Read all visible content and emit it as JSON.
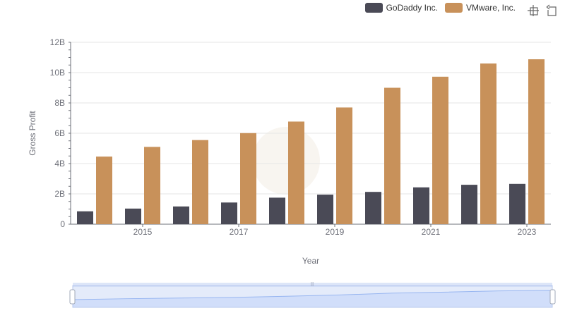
{
  "legend": {
    "godaddy": "GoDaddy Inc.",
    "vmware": "VMware, Inc."
  },
  "toolbox": {
    "zoom_icon": "zoom-select-icon",
    "reset_icon": "zoom-reset-icon"
  },
  "colors": {
    "godaddy": "#4a4a56",
    "vmware": "#c8915a",
    "grid": "#e6e6e6",
    "axis": "#6e7079",
    "slider_fill": "#dbe6fc",
    "slider_border": "#b8c8ee"
  },
  "chart_data": {
    "type": "bar",
    "xlabel": "Year",
    "ylabel": "Gross Profit",
    "ylim": [
      0,
      12000000000
    ],
    "y_ticks": [
      "0",
      "2B",
      "4B",
      "6B",
      "8B",
      "10B",
      "12B"
    ],
    "x_tick_labels": [
      "2015",
      "2017",
      "2019",
      "2021",
      "2023"
    ],
    "categories": [
      "2014",
      "2015",
      "2016",
      "2017",
      "2018",
      "2019",
      "2020",
      "2021",
      "2022",
      "2023"
    ],
    "series": [
      {
        "name": "GoDaddy Inc.",
        "values": [
          850000000,
          1030000000,
          1170000000,
          1430000000,
          1750000000,
          1950000000,
          2130000000,
          2430000000,
          2600000000,
          2660000000
        ]
      },
      {
        "name": "VMware, Inc.",
        "values": [
          4460000000,
          5100000000,
          5550000000,
          6010000000,
          6770000000,
          7700000000,
          9000000000,
          9730000000,
          10600000000,
          10880000000
        ]
      }
    ],
    "legend_position": "top-right",
    "grid": true,
    "data_zoom": {
      "start": 0,
      "end": 100
    }
  }
}
